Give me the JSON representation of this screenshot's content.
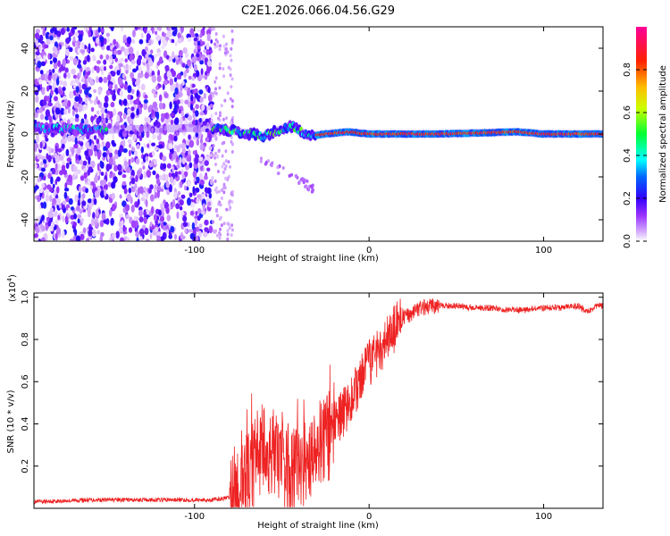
{
  "title": "C2E1.2026.066.04.56.G29",
  "chart_data": [
    {
      "type": "heatmap",
      "name": "spectrogram",
      "xlabel": "Height of straight line (km)",
      "ylabel": "Frequency (Hz)",
      "xlim": [
        -192,
        134
      ],
      "ylim": [
        -50,
        50
      ],
      "xticks": [
        {
          "value": -100,
          "label": "-100"
        },
        {
          "value": 0,
          "label": "0"
        },
        {
          "value": 100,
          "label": "100"
        }
      ],
      "yticks": [
        {
          "value": -40,
          "label": "-40"
        },
        {
          "value": -20,
          "label": "-20"
        },
        {
          "value": 0,
          "label": "0"
        },
        {
          "value": 20,
          "label": "20"
        },
        {
          "value": 40,
          "label": "40"
        }
      ],
      "colorbar": {
        "label": "Normalized spectral amplitude",
        "range": [
          0,
          1
        ],
        "ticks": [
          {
            "value": 0.0,
            "label": "0.0"
          },
          {
            "value": 0.2,
            "label": "0.2"
          },
          {
            "value": 0.4,
            "label": "0.4"
          },
          {
            "value": 0.6,
            "label": "0.6"
          },
          {
            "value": 0.8,
            "label": "0.8"
          }
        ],
        "colors": [
          "#ffffff",
          "#cc99ff",
          "#7a00ff",
          "#0000ff",
          "#00ffff",
          "#00ff00",
          "#ffff00",
          "#ff8800",
          "#ff0000",
          "#ff00aa"
        ]
      },
      "regions": [
        {
          "name": "noise",
          "x_range": [
            -192,
            -90
          ],
          "y_range": [
            -50,
            50
          ],
          "amplitude": 0.12
        },
        {
          "name": "carrier-early",
          "x_range": [
            -192,
            -150
          ],
          "center": 2,
          "amplitude": 0.35
        },
        {
          "name": "carrier-transition",
          "x_range": [
            -90,
            -30
          ],
          "center": 2,
          "amplitude": 0.45
        },
        {
          "name": "carrier-clean",
          "x_range": [
            -30,
            134
          ],
          "center": 0,
          "amplitude": 0.85
        }
      ],
      "line_points": [
        {
          "x": -190,
          "y": 3
        },
        {
          "x": -170,
          "y": 2
        },
        {
          "x": -150,
          "y": 2
        },
        {
          "x": -88,
          "y": 3
        },
        {
          "x": -75,
          "y": 1
        },
        {
          "x": -60,
          "y": -1
        },
        {
          "x": -45,
          "y": 4
        },
        {
          "x": -35,
          "y": -1
        },
        {
          "x": -25,
          "y": 0
        },
        {
          "x": -12,
          "y": 1
        },
        {
          "x": 0,
          "y": 0
        },
        {
          "x": 40,
          "y": 0
        },
        {
          "x": 85,
          "y": 1
        },
        {
          "x": 100,
          "y": 0
        },
        {
          "x": 134,
          "y": 0
        }
      ]
    },
    {
      "type": "line",
      "name": "snr",
      "xlabel": "Height of straight line (km)",
      "ylabel": "SNR (10 * v/v)",
      "y_multiplier": "(x10",
      "y_multiplier_exp": "4",
      "color": "#ee2222",
      "xlim": [
        -192,
        134
      ],
      "ylim": [
        0,
        1.02
      ],
      "xticks": [
        {
          "value": -100,
          "label": "-100"
        },
        {
          "value": 0,
          "label": "0"
        },
        {
          "value": 100,
          "label": "100"
        }
      ],
      "yticks": [
        {
          "value": 0.2,
          "label": "0.2"
        },
        {
          "value": 0.4,
          "label": "0.4"
        },
        {
          "value": 0.6,
          "label": "0.6"
        },
        {
          "value": 0.8,
          "label": "0.8"
        },
        {
          "value": 1.0,
          "label": "1.0"
        }
      ],
      "series": [
        {
          "name": "SNR",
          "x": [
            -192,
            -160,
            -120,
            -100,
            -90,
            -80,
            -70,
            -62,
            -55,
            -48,
            -42,
            -36,
            -30,
            -25,
            -20,
            -15,
            -10,
            -5,
            0,
            5,
            10,
            15,
            20,
            25,
            30,
            40,
            50,
            60,
            70,
            80,
            90,
            100,
            110,
            120,
            125,
            130,
            134
          ],
          "y": [
            0.03,
            0.04,
            0.04,
            0.04,
            0.04,
            0.05,
            0.15,
            0.28,
            0.25,
            0.2,
            0.16,
            0.22,
            0.3,
            0.33,
            0.38,
            0.45,
            0.52,
            0.6,
            0.68,
            0.75,
            0.8,
            0.85,
            0.9,
            0.93,
            0.95,
            0.96,
            0.96,
            0.95,
            0.95,
            0.94,
            0.94,
            0.95,
            0.95,
            0.96,
            0.93,
            0.96,
            0.96
          ]
        }
      ]
    }
  ]
}
